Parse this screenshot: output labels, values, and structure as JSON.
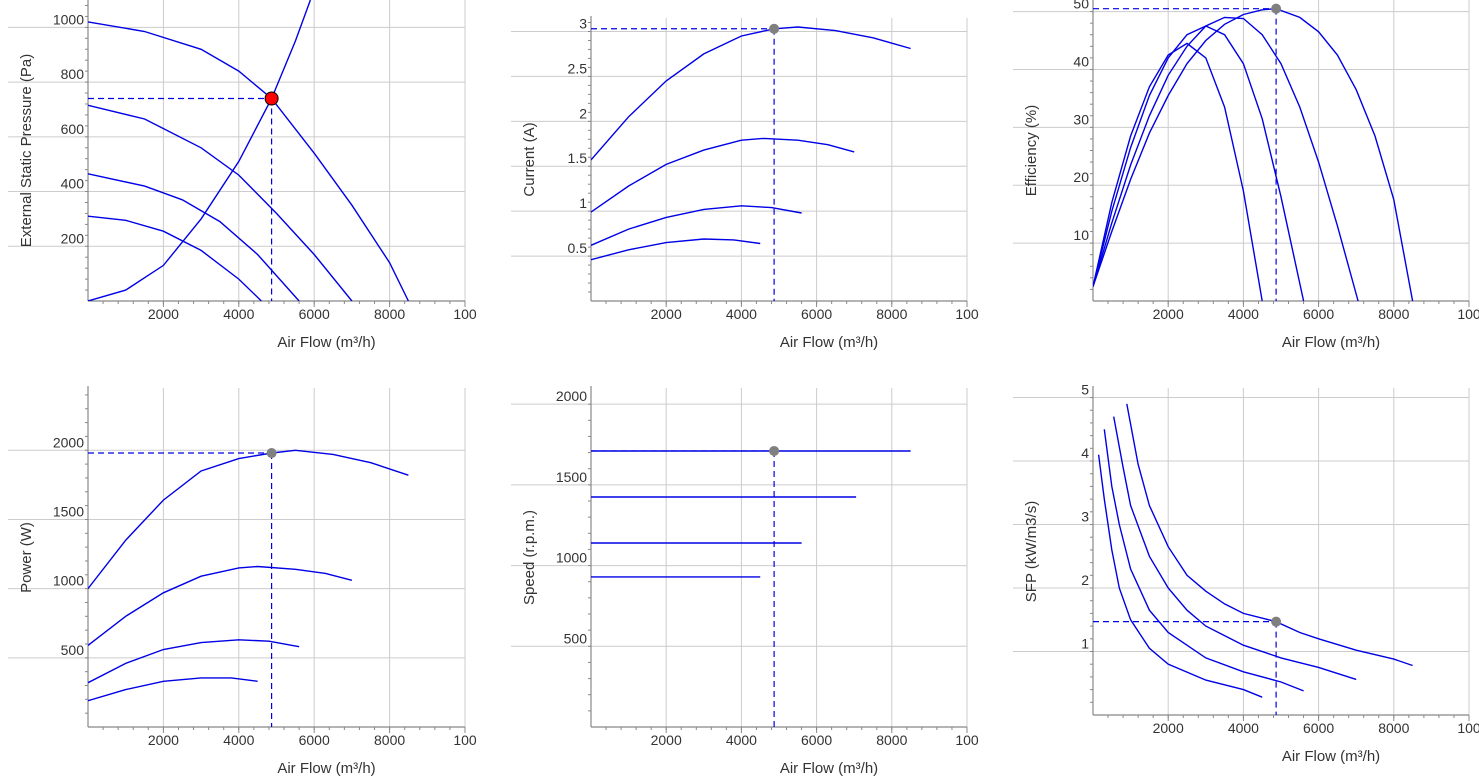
{
  "colors": {
    "curve": "#0000e6",
    "grid": "#cccccc",
    "axis": "#888888",
    "operating_point_primary": "#ff0000",
    "operating_point": "#808080"
  },
  "chart_data": [
    {
      "id": "pressure",
      "type": "line",
      "xlabel": "Air Flow (m³/h)",
      "ylabel": "External Static Pressure (Pa)",
      "xlim": [
        0,
        10000
      ],
      "ylim": [
        0,
        1100
      ],
      "x_ticks": [
        "2000",
        "4000",
        "6000",
        "8000",
        "100"
      ],
      "y_ticks": [
        "200",
        "400",
        "600",
        "800",
        "1000"
      ],
      "series": [
        {
          "points": [
            [
              0,
              1020
            ],
            [
              1500,
              985
            ],
            [
              3000,
              920
            ],
            [
              4000,
              840
            ],
            [
              4870,
              740
            ],
            [
              6000,
              540
            ],
            [
              7000,
              350
            ],
            [
              8000,
              140
            ],
            [
              8500,
              0
            ]
          ]
        },
        {
          "points": [
            [
              0,
              715
            ],
            [
              1500,
              665
            ],
            [
              3000,
              560
            ],
            [
              4000,
              460
            ],
            [
              5000,
              320
            ],
            [
              6000,
              170
            ],
            [
              7000,
              0
            ]
          ]
        },
        {
          "points": [
            [
              0,
              465
            ],
            [
              1500,
              420
            ],
            [
              2500,
              370
            ],
            [
              3500,
              290
            ],
            [
              4500,
              170
            ],
            [
              5600,
              0
            ]
          ]
        },
        {
          "points": [
            [
              0,
              310
            ],
            [
              1000,
              295
            ],
            [
              2000,
              255
            ],
            [
              3000,
              185
            ],
            [
              4000,
              80
            ],
            [
              4600,
              0
            ]
          ]
        },
        {
          "points": [
            [
              0,
              0
            ],
            [
              1000,
              40
            ],
            [
              2000,
              130
            ],
            [
              3000,
              300
            ],
            [
              4000,
              510
            ],
            [
              4870,
              740
            ],
            [
              5500,
              950
            ],
            [
              5900,
              1100
            ]
          ]
        }
      ],
      "operating_point": {
        "x": 4870,
        "y": 740,
        "style": "primary"
      }
    },
    {
      "id": "current",
      "type": "line",
      "xlabel": "Air Flow (m³/h)",
      "ylabel": "Current (A)",
      "xlim": [
        0,
        10000
      ],
      "ylim": [
        0,
        3.15
      ],
      "x_ticks": [
        "2000",
        "4000",
        "6000",
        "8000",
        "100"
      ],
      "y_ticks": [
        "0.5",
        "1",
        "1.5",
        "2",
        "2.5",
        "3"
      ],
      "series": [
        {
          "points": [
            [
              0,
              1.57
            ],
            [
              1000,
              2.05
            ],
            [
              2000,
              2.45
            ],
            [
              3000,
              2.75
            ],
            [
              4000,
              2.95
            ],
            [
              4870,
              3.03
            ],
            [
              5500,
              3.05
            ],
            [
              6500,
              3.01
            ],
            [
              7500,
              2.93
            ],
            [
              8500,
              2.81
            ]
          ]
        },
        {
          "points": [
            [
              0,
              0.99
            ],
            [
              1000,
              1.28
            ],
            [
              2000,
              1.52
            ],
            [
              3000,
              1.68
            ],
            [
              4000,
              1.79
            ],
            [
              4600,
              1.81
            ],
            [
              5500,
              1.79
            ],
            [
              6300,
              1.74
            ],
            [
              7000,
              1.66
            ]
          ]
        },
        {
          "points": [
            [
              0,
              0.62
            ],
            [
              1000,
              0.8
            ],
            [
              2000,
              0.93
            ],
            [
              3000,
              1.02
            ],
            [
              4000,
              1.06
            ],
            [
              4800,
              1.04
            ],
            [
              5600,
              0.98
            ]
          ]
        },
        {
          "points": [
            [
              0,
              0.46
            ],
            [
              1000,
              0.57
            ],
            [
              2000,
              0.65
            ],
            [
              3000,
              0.69
            ],
            [
              3800,
              0.68
            ],
            [
              4500,
              0.64
            ]
          ]
        }
      ],
      "operating_point": {
        "x": 4870,
        "y": 3.03,
        "style": "secondary"
      }
    },
    {
      "id": "efficiency",
      "type": "line",
      "xlabel": "Air Flow (m³/h)",
      "ylabel": "Efficiency (%)",
      "xlim": [
        0,
        10000
      ],
      "ylim": [
        0,
        52
      ],
      "x_ticks": [
        "2000",
        "4000",
        "6000",
        "8000",
        "100"
      ],
      "y_ticks": [
        "10",
        "20",
        "30",
        "40",
        "50"
      ],
      "series": [
        {
          "points": [
            [
              0,
              2.5
            ],
            [
              500,
              17
            ],
            [
              1000,
              28.5
            ],
            [
              1500,
              37
            ],
            [
              2000,
              42.5
            ],
            [
              2500,
              44.5
            ],
            [
              3000,
              42
            ],
            [
              3500,
              33.5
            ],
            [
              4000,
              19
            ],
            [
              4500,
              0
            ]
          ]
        },
        {
          "points": [
            [
              0,
              2.5
            ],
            [
              500,
              15.5
            ],
            [
              1000,
              26.5
            ],
            [
              1500,
              35.5
            ],
            [
              2000,
              42
            ],
            [
              2500,
              46
            ],
            [
              3000,
              47.5
            ],
            [
              3500,
              46
            ],
            [
              4000,
              41
            ],
            [
              4500,
              31.5
            ],
            [
              5000,
              18
            ],
            [
              5600,
              0
            ]
          ]
        },
        {
          "points": [
            [
              0,
              2.5
            ],
            [
              500,
              13.5
            ],
            [
              1000,
              23.5
            ],
            [
              1500,
              32
            ],
            [
              2000,
              39
            ],
            [
              2500,
              44
            ],
            [
              3000,
              47.5
            ],
            [
              3500,
              49
            ],
            [
              4000,
              48.8
            ],
            [
              4500,
              46
            ],
            [
              5000,
              41
            ],
            [
              5500,
              33.5
            ],
            [
              6000,
              24
            ],
            [
              6500,
              13
            ],
            [
              7050,
              0
            ]
          ]
        },
        {
          "points": [
            [
              0,
              2.5
            ],
            [
              500,
              12
            ],
            [
              1000,
              21
            ],
            [
              1500,
              29
            ],
            [
              2000,
              35.5
            ],
            [
              2500,
              41
            ],
            [
              3000,
              45
            ],
            [
              3500,
              47.8
            ],
            [
              4000,
              49.5
            ],
            [
              4500,
              50.3
            ],
            [
              4870,
              50.5
            ],
            [
              5500,
              49
            ],
            [
              6000,
              46.5
            ],
            [
              6500,
              42.5
            ],
            [
              7000,
              36.5
            ],
            [
              7500,
              28.5
            ],
            [
              8000,
              17.5
            ],
            [
              8500,
              0
            ]
          ]
        }
      ],
      "operating_point": {
        "x": 4870,
        "y": 50.5,
        "style": "secondary"
      }
    },
    {
      "id": "power",
      "type": "line",
      "xlabel": "Air Flow (m³/h)",
      "ylabel": "Power (W)",
      "xlim": [
        0,
        10000
      ],
      "ylim": [
        0,
        2450
      ],
      "x_ticks": [
        "2000",
        "4000",
        "6000",
        "8000",
        "100"
      ],
      "y_ticks": [
        "500",
        "1000",
        "1500",
        "2000"
      ],
      "series": [
        {
          "points": [
            [
              0,
              1000
            ],
            [
              1000,
              1350
            ],
            [
              2000,
              1640
            ],
            [
              3000,
              1850
            ],
            [
              4000,
              1940
            ],
            [
              4870,
              1980
            ],
            [
              5500,
              2000
            ],
            [
              6500,
              1970
            ],
            [
              7500,
              1910
            ],
            [
              8500,
              1820
            ]
          ]
        },
        {
          "points": [
            [
              0,
              590
            ],
            [
              1000,
              800
            ],
            [
              2000,
              970
            ],
            [
              3000,
              1090
            ],
            [
              4000,
              1150
            ],
            [
              4500,
              1160
            ],
            [
              5500,
              1140
            ],
            [
              6300,
              1110
            ],
            [
              7000,
              1060
            ]
          ]
        },
        {
          "points": [
            [
              0,
              320
            ],
            [
              1000,
              460
            ],
            [
              2000,
              560
            ],
            [
              3000,
              610
            ],
            [
              4000,
              630
            ],
            [
              4800,
              620
            ],
            [
              5600,
              580
            ]
          ]
        },
        {
          "points": [
            [
              0,
              190
            ],
            [
              1000,
              270
            ],
            [
              2000,
              330
            ],
            [
              3000,
              355
            ],
            [
              3800,
              355
            ],
            [
              4500,
              330
            ]
          ]
        }
      ],
      "operating_point": {
        "x": 4870,
        "y": 1980,
        "style": "secondary"
      }
    },
    {
      "id": "speed",
      "type": "line",
      "xlabel": "Air Flow (m³/h)",
      "ylabel": "Speed (r.p.m.)",
      "xlim": [
        0,
        10000
      ],
      "ylim": [
        0,
        2100
      ],
      "x_ticks": [
        "2000",
        "4000",
        "6000",
        "8000",
        "100"
      ],
      "y_ticks": [
        "500",
        "1000",
        "1500",
        "2000"
      ],
      "series": [
        {
          "points": [
            [
              0,
              1710
            ],
            [
              8500,
              1710
            ]
          ]
        },
        {
          "points": [
            [
              0,
              1425
            ],
            [
              7050,
              1425
            ]
          ]
        },
        {
          "points": [
            [
              0,
              1140
            ],
            [
              5600,
              1140
            ]
          ]
        },
        {
          "points": [
            [
              0,
              930
            ],
            [
              4500,
              930
            ]
          ]
        }
      ],
      "operating_point": {
        "x": 4870,
        "y": 1710,
        "style": "secondary"
      }
    },
    {
      "id": "sfp",
      "type": "line",
      "xlabel": "Air Flow (m³/h)",
      "ylabel": "SFP (kW/m3/s)",
      "xlim": [
        0,
        10000
      ],
      "ylim": [
        0,
        5.15
      ],
      "x_ticks": [
        "2000",
        "4000",
        "6000",
        "8000",
        "100"
      ],
      "y_ticks": [
        "1",
        "2",
        "3",
        "4",
        "5"
      ],
      "series": [
        {
          "points": [
            [
              900,
              4.9
            ],
            [
              1200,
              3.95
            ],
            [
              1500,
              3.3
            ],
            [
              2000,
              2.65
            ],
            [
              2500,
              2.2
            ],
            [
              3000,
              1.95
            ],
            [
              3500,
              1.75
            ],
            [
              4000,
              1.6
            ],
            [
              4870,
              1.47
            ],
            [
              5500,
              1.3
            ],
            [
              6000,
              1.2
            ],
            [
              7000,
              1.02
            ],
            [
              8000,
              0.88
            ],
            [
              8500,
              0.78
            ]
          ]
        },
        {
          "points": [
            [
              550,
              4.7
            ],
            [
              800,
              3.9
            ],
            [
              1000,
              3.3
            ],
            [
              1500,
              2.5
            ],
            [
              2000,
              2.0
            ],
            [
              2500,
              1.65
            ],
            [
              3000,
              1.4
            ],
            [
              4000,
              1.1
            ],
            [
              5000,
              0.9
            ],
            [
              6000,
              0.75
            ],
            [
              7000,
              0.56
            ]
          ]
        },
        {
          "points": [
            [
              300,
              4.5
            ],
            [
              500,
              3.6
            ],
            [
              700,
              3.0
            ],
            [
              1000,
              2.3
            ],
            [
              1500,
              1.65
            ],
            [
              2000,
              1.3
            ],
            [
              3000,
              0.9
            ],
            [
              4000,
              0.68
            ],
            [
              5000,
              0.52
            ],
            [
              5600,
              0.38
            ]
          ]
        },
        {
          "points": [
            [
              150,
              4.1
            ],
            [
              300,
              3.4
            ],
            [
              500,
              2.6
            ],
            [
              700,
              2.0
            ],
            [
              1000,
              1.5
            ],
            [
              1500,
              1.05
            ],
            [
              2000,
              0.8
            ],
            [
              3000,
              0.55
            ],
            [
              4000,
              0.4
            ],
            [
              4500,
              0.28
            ]
          ]
        }
      ],
      "operating_point": {
        "x": 4870,
        "y": 1.47,
        "style": "secondary"
      }
    }
  ]
}
